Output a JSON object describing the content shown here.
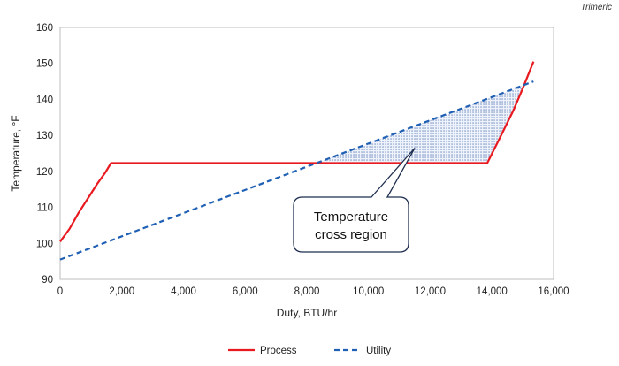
{
  "watermark": "Trimeric",
  "chart_data": {
    "type": "line",
    "xlabel": "Duty, BTU/hr",
    "ylabel": "Temperature, °F",
    "xlim": [
      0,
      16000
    ],
    "ylim": [
      90,
      160
    ],
    "x_ticks": [
      0,
      2000,
      4000,
      6000,
      8000,
      10000,
      12000,
      14000,
      16000
    ],
    "x_tick_labels": [
      "0",
      "2,000",
      "4,000",
      "6,000",
      "8,000",
      "10,000",
      "12,000",
      "14,000",
      "16,000"
    ],
    "y_ticks": [
      90,
      100,
      110,
      120,
      130,
      140,
      150,
      160
    ],
    "y_tick_labels": [
      "90",
      "100",
      "110",
      "120",
      "130",
      "140",
      "150",
      "160"
    ],
    "grid": false,
    "legend_position": "bottom-center",
    "series": [
      {
        "name": "Process",
        "color": "#e8191f",
        "style": "solid",
        "x": [
          0,
          300,
          600,
          900,
          1200,
          1450,
          1650,
          13850,
          14300,
          14700,
          15000,
          15350
        ],
        "y": [
          100.5,
          104,
          108.5,
          112.5,
          116.5,
          119.5,
          122.3,
          122.3,
          130,
          137,
          143,
          150.5
        ]
      },
      {
        "name": "Utility",
        "color": "#1f5fb4",
        "style": "dashed",
        "x": [
          0,
          15350
        ],
        "y": [
          95.5,
          145
        ]
      }
    ],
    "annotation": {
      "lines": [
        "Temperature",
        "cross region"
      ],
      "points_to": [
        11500,
        126.5
      ]
    },
    "shaded_region": {
      "label": "Temperature cross region",
      "between": [
        "Utility",
        "Process"
      ],
      "x_range": [
        8450,
        15050
      ],
      "color": "#1f5fb4"
    }
  }
}
